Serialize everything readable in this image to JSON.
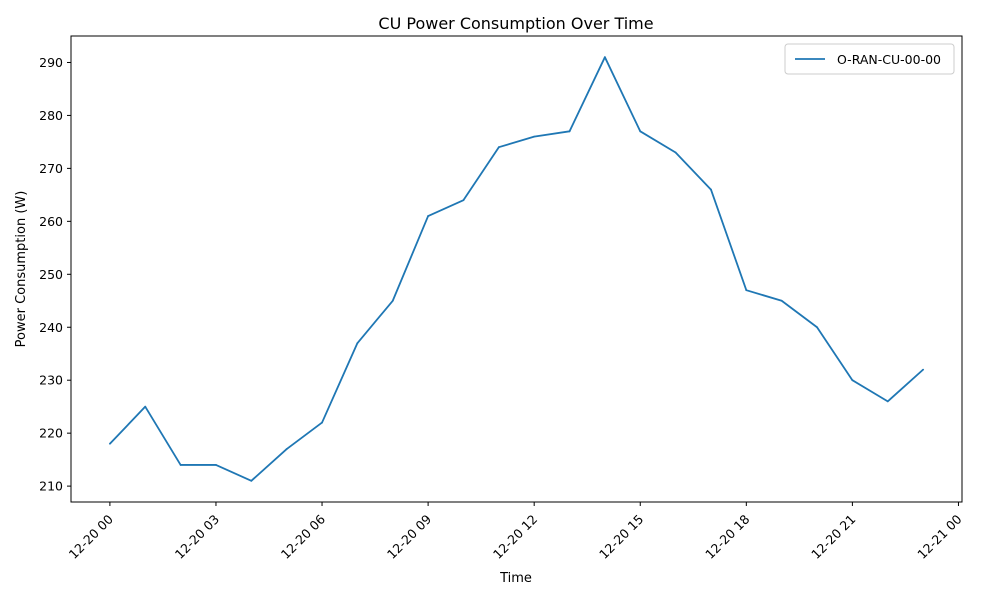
{
  "chart_data": {
    "type": "line",
    "title": "CU Power Consumption Over Time",
    "xlabel": "Time",
    "ylabel": "Power Consumption (W)",
    "x_ticks": [
      "12-20 00",
      "12-20 03",
      "12-20 06",
      "12-20 09",
      "12-20 12",
      "12-20 15",
      "12-20 18",
      "12-20 21",
      "12-21 00"
    ],
    "x_tick_hours": [
      0,
      3,
      6,
      9,
      12,
      15,
      18,
      21,
      24
    ],
    "x_unit": "hour of 12-20",
    "xlim": [
      -1.1,
      24.1
    ],
    "y_ticks": [
      210,
      220,
      230,
      240,
      250,
      260,
      270,
      280,
      290
    ],
    "ylim": [
      207,
      295
    ],
    "grid": false,
    "legend_position": "top-right",
    "series": [
      {
        "name": "O-RAN-CU-00-00",
        "color": "#1f77b4",
        "x": [
          0,
          1,
          2,
          3,
          4,
          5,
          6,
          7,
          8,
          9,
          10,
          11,
          12,
          13,
          14,
          15,
          16,
          17,
          18,
          19,
          20,
          21,
          22,
          23
        ],
        "values": [
          218,
          225,
          214,
          214,
          211,
          217,
          222,
          237,
          245,
          261,
          264,
          274,
          276,
          277,
          291,
          277,
          273,
          266,
          247,
          245,
          240,
          230,
          226,
          232
        ]
      }
    ]
  }
}
